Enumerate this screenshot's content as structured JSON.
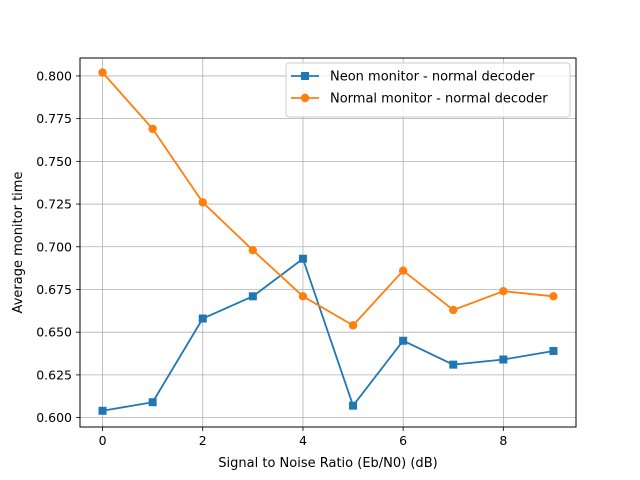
{
  "chart_data": {
    "type": "line",
    "title": "",
    "xlabel": "Signal to Noise Ratio (Eb/N0) (dB)",
    "ylabel": "Average monitor time",
    "x": [
      0,
      1,
      2,
      3,
      4,
      5,
      6,
      7,
      8,
      9
    ],
    "xlim": [
      -0.45,
      9.45
    ],
    "ylim": [
      0.5945,
      0.8105
    ],
    "xticks": [
      0,
      2,
      4,
      6,
      8
    ],
    "xtick_labels": [
      "0",
      "2",
      "4",
      "6",
      "8"
    ],
    "yticks": [
      0.6,
      0.625,
      0.65,
      0.675,
      0.7,
      0.725,
      0.75,
      0.775,
      0.8
    ],
    "ytick_labels": [
      "0.600",
      "0.625",
      "0.650",
      "0.675",
      "0.700",
      "0.725",
      "0.750",
      "0.775",
      "0.800"
    ],
    "grid": true,
    "legend_position": "top-right",
    "series": [
      {
        "name": "Neon monitor - normal decoder",
        "color": "#1f77b4",
        "marker": "square",
        "values": [
          0.604,
          0.609,
          0.658,
          0.671,
          0.693,
          0.607,
          0.645,
          0.631,
          0.634,
          0.639
        ]
      },
      {
        "name": "Normal monitor - normal decoder",
        "color": "#ff7f0e",
        "marker": "circle",
        "values": [
          0.802,
          0.769,
          0.726,
          0.698,
          0.671,
          0.654,
          0.686,
          0.663,
          0.674,
          0.671
        ]
      }
    ]
  }
}
